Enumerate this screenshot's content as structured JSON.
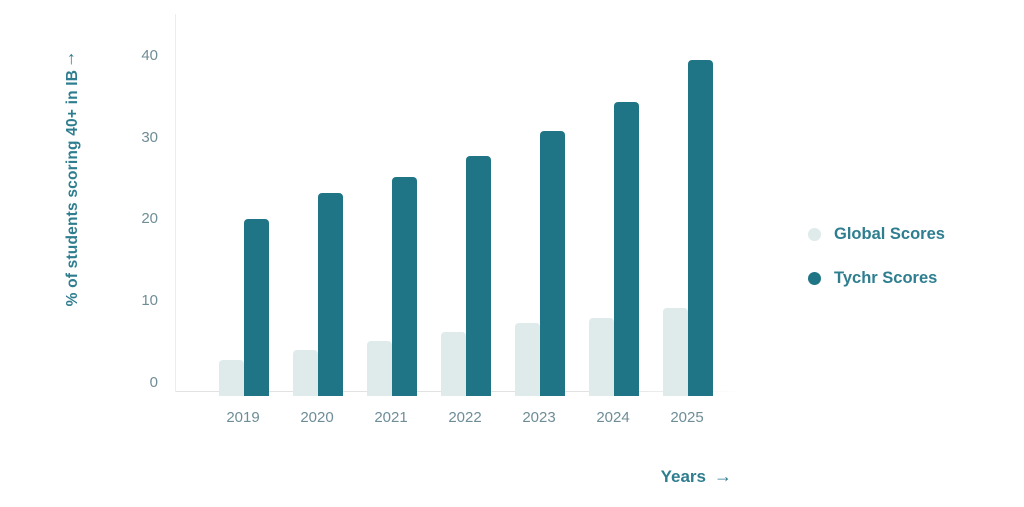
{
  "colors": {
    "accent_text": "#2e7e8f",
    "tick_text": "#6e8d96",
    "axis_line": "#ececec",
    "global_series": "#dfeaea",
    "tychr_series": "#1f7585",
    "background": "#ffffff"
  },
  "chart_data": {
    "type": "bar",
    "title": "",
    "categories": [
      "2019",
      "2020",
      "2021",
      "2022",
      "2023",
      "2024",
      "2025"
    ],
    "series": [
      {
        "name": "Global Scores",
        "color": "#dfeaea",
        "values": [
          2.8,
          4.0,
          5.2,
          6.3,
          7.4,
          8.0,
          9.2
        ]
      },
      {
        "name": "Tychr Scores",
        "color": "#1f7585",
        "values": [
          20.0,
          23.2,
          25.2,
          27.8,
          30.8,
          34.4,
          39.5
        ]
      }
    ],
    "xlabel": "Years",
    "x_arrow": "→",
    "ylabel": "% of students scoring 40+ in IB",
    "y_arrow": "↑",
    "yticks": [
      0,
      10,
      20,
      30,
      40
    ],
    "ylim": [
      0,
      42
    ],
    "grid": false,
    "legend_position": "right"
  }
}
